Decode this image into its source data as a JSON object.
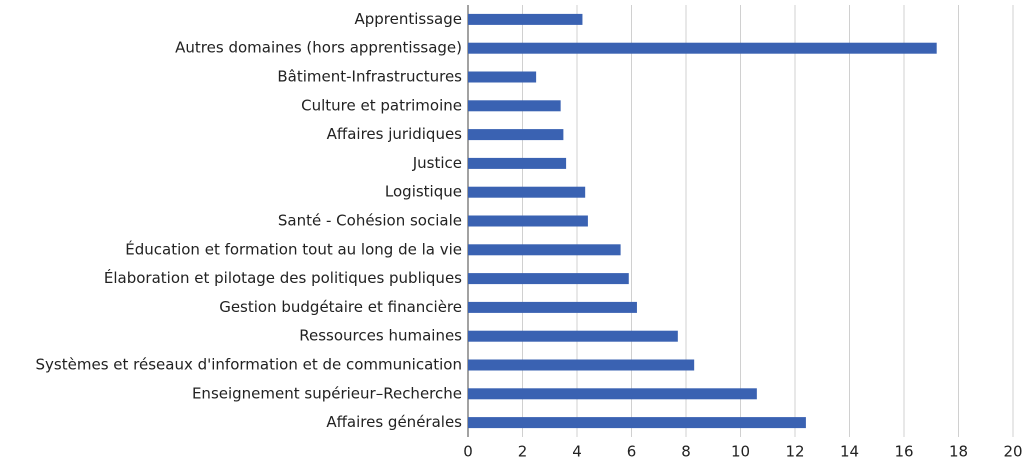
{
  "chart_data": {
    "type": "barh",
    "categories": [
      "Apprentissage",
      "Autres domaines (hors apprentissage)",
      "Bâtiment-Infrastructures",
      "Culture et patrimoine",
      "Affaires juridiques",
      "Justice",
      "Logistique",
      "Santé - Cohésion sociale",
      "Éducation et formation tout au long de la vie",
      "Élaboration et pilotage des politiques publiques",
      "Gestion budgétaire et financière",
      "Ressources humaines",
      "Systèmes et réseaux d'information et de communication",
      "Enseignement supérieur–Recherche",
      "Affaires générales"
    ],
    "values": [
      4.2,
      17.2,
      2.5,
      3.4,
      3.5,
      3.6,
      4.3,
      4.4,
      5.6,
      5.9,
      6.2,
      7.7,
      8.3,
      10.6,
      12.4
    ],
    "color": "#3a62b2",
    "xlim": [
      0,
      20
    ],
    "xticks": [
      0,
      2,
      4,
      6,
      8,
      10,
      12,
      14,
      16,
      18,
      20
    ],
    "grid": true
  }
}
